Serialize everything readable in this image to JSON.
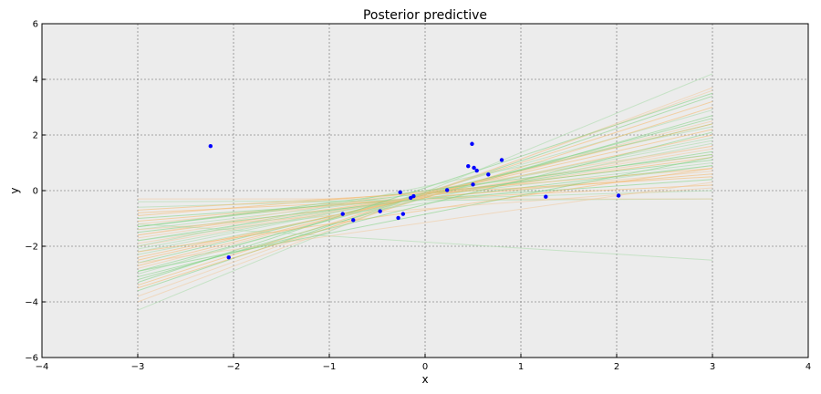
{
  "chart_data": {
    "type": "scatter",
    "title": "Posterior predictive",
    "xlabel": "x",
    "ylabel": "y",
    "xlim": [
      -4,
      4
    ],
    "ylim": [
      -6,
      6
    ],
    "xticks": [
      -4,
      -3,
      -2,
      -1,
      0,
      1,
      2,
      3,
      4
    ],
    "yticks": [
      -6,
      -4,
      -2,
      0,
      2,
      4,
      6
    ],
    "grid": true,
    "background": "#ececec",
    "point_color": "#0000ff",
    "line_colors": [
      "#7fd27f",
      "#f5b86a",
      "#a8dba8",
      "#f3c99a"
    ],
    "points": [
      {
        "x": -2.24,
        "y": 1.6
      },
      {
        "x": -2.05,
        "y": -2.4
      },
      {
        "x": -0.86,
        "y": -0.84
      },
      {
        "x": -0.75,
        "y": -1.06
      },
      {
        "x": -0.47,
        "y": -0.74
      },
      {
        "x": -0.28,
        "y": -0.98
      },
      {
        "x": -0.26,
        "y": -0.06
      },
      {
        "x": -0.23,
        "y": -0.84
      },
      {
        "x": -0.15,
        "y": -0.26
      },
      {
        "x": -0.12,
        "y": -0.2
      },
      {
        "x": 0.23,
        "y": 0.02
      },
      {
        "x": 0.45,
        "y": 0.88
      },
      {
        "x": 0.49,
        "y": 1.68
      },
      {
        "x": 0.5,
        "y": 0.22
      },
      {
        "x": 0.51,
        "y": 0.82
      },
      {
        "x": 0.54,
        "y": 0.72
      },
      {
        "x": 0.66,
        "y": 0.58
      },
      {
        "x": 0.8,
        "y": 1.1
      },
      {
        "x": 1.26,
        "y": -0.22
      },
      {
        "x": 2.02,
        "y": -0.18
      }
    ],
    "lines_x_range": [
      -3,
      3
    ],
    "lines": [
      {
        "y0": -3.6,
        "y1": 3.4
      },
      {
        "y0": -3.4,
        "y1": 3.2
      },
      {
        "y0": -3.0,
        "y1": 2.9
      },
      {
        "y0": -2.8,
        "y1": 2.5
      },
      {
        "y0": -2.6,
        "y1": 2.4
      },
      {
        "y0": -2.4,
        "y1": 2.0
      },
      {
        "y0": -2.2,
        "y1": 1.9
      },
      {
        "y0": -2.0,
        "y1": 1.6
      },
      {
        "y0": -1.8,
        "y1": 1.4
      },
      {
        "y0": -1.6,
        "y1": 1.2
      },
      {
        "y0": -1.4,
        "y1": 1.0
      },
      {
        "y0": -1.2,
        "y1": 0.7
      },
      {
        "y0": -1.0,
        "y1": 0.4
      },
      {
        "y0": -0.8,
        "y1": 0.2
      },
      {
        "y0": -0.4,
        "y1": -0.3
      },
      {
        "y0": -3.8,
        "y1": 3.6
      },
      {
        "y0": -3.2,
        "y1": 2.7
      },
      {
        "y0": -2.5,
        "y1": 2.2
      },
      {
        "y0": -2.1,
        "y1": 1.8
      },
      {
        "y0": -1.7,
        "y1": 1.3
      },
      {
        "y0": -1.5,
        "y1": 0.9
      },
      {
        "y0": -1.1,
        "y1": 0.6
      },
      {
        "y0": -0.6,
        "y1": 0.0
      },
      {
        "y0": -0.3,
        "y1": -0.3
      },
      {
        "y0": -2.9,
        "y1": 2.6
      },
      {
        "y0": -3.5,
        "y1": 3.0
      },
      {
        "y0": -2.3,
        "y1": 1.7
      },
      {
        "y0": -1.9,
        "y1": 1.5
      },
      {
        "y0": -1.3,
        "y1": 1.1
      },
      {
        "y0": -0.9,
        "y1": 0.8
      },
      {
        "y0": -4.3,
        "y1": 4.2
      },
      {
        "y0": -4.0,
        "y1": 3.7
      },
      {
        "y0": -3.3,
        "y1": 3.5
      },
      {
        "y0": -2.7,
        "y1": 2.4
      },
      {
        "y0": -2.0,
        "y1": 2.3
      },
      {
        "y0": -1.6,
        "y1": 1.6
      },
      {
        "y0": -1.3,
        "y1": 1.3
      },
      {
        "y0": -0.7,
        "y1": 0.5
      },
      {
        "y0": -1.2,
        "y1": -2.5
      },
      {
        "y0": -2.6,
        "y1": 0.3
      },
      {
        "y0": -2.9,
        "y1": 1.2
      },
      {
        "y0": -2.2,
        "y1": 0.8
      },
      {
        "y0": -1.8,
        "y1": 0.9
      },
      {
        "y0": -1.4,
        "y1": 0.1
      },
      {
        "y0": -3.1,
        "y1": 2.1
      }
    ]
  }
}
